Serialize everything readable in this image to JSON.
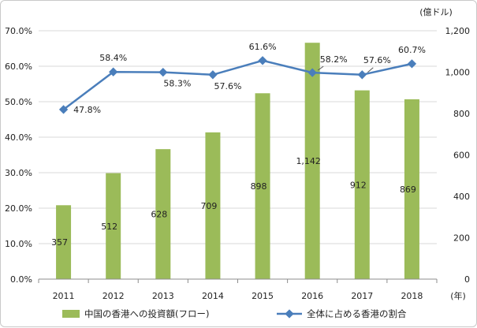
{
  "chart_data": {
    "type": "bar",
    "categories": [
      "2011",
      "2012",
      "2013",
      "2014",
      "2015",
      "2016",
      "2017",
      "2018"
    ],
    "series": [
      {
        "name": "中国の香港への投資額(フロー)",
        "axis": "right",
        "type": "bar",
        "color": "#9bbb59",
        "values": [
          357,
          512,
          628,
          709,
          898,
          1142,
          912,
          869
        ],
        "labels": [
          "357",
          "512",
          "628",
          "709",
          "898",
          "1,142",
          "912",
          "869"
        ]
      },
      {
        "name": "全体に占める香港の割合",
        "axis": "left",
        "type": "line",
        "color": "#4a7ebb",
        "values": [
          47.8,
          58.4,
          58.3,
          57.6,
          61.6,
          58.2,
          57.6,
          60.7
        ],
        "labels": [
          "47.8%",
          "58.4%",
          "58.3%",
          "57.6%",
          "61.6%",
          "58.2%",
          "57.6%",
          "60.7%"
        ]
      }
    ],
    "left_axis": {
      "ylim": [
        0,
        70
      ],
      "ticks": [
        "0.0%",
        "10.0%",
        "20.0%",
        "30.0%",
        "40.0%",
        "50.0%",
        "60.0%",
        "70.0%"
      ]
    },
    "right_axis": {
      "ylim": [
        0,
        1200
      ],
      "ticks": [
        "0",
        "200",
        "400",
        "600",
        "800",
        "1,000",
        "1,200"
      ],
      "unit_label": "(億ドル)"
    },
    "x_unit_label": "(年)",
    "legend_position": "bottom",
    "grid": true
  }
}
